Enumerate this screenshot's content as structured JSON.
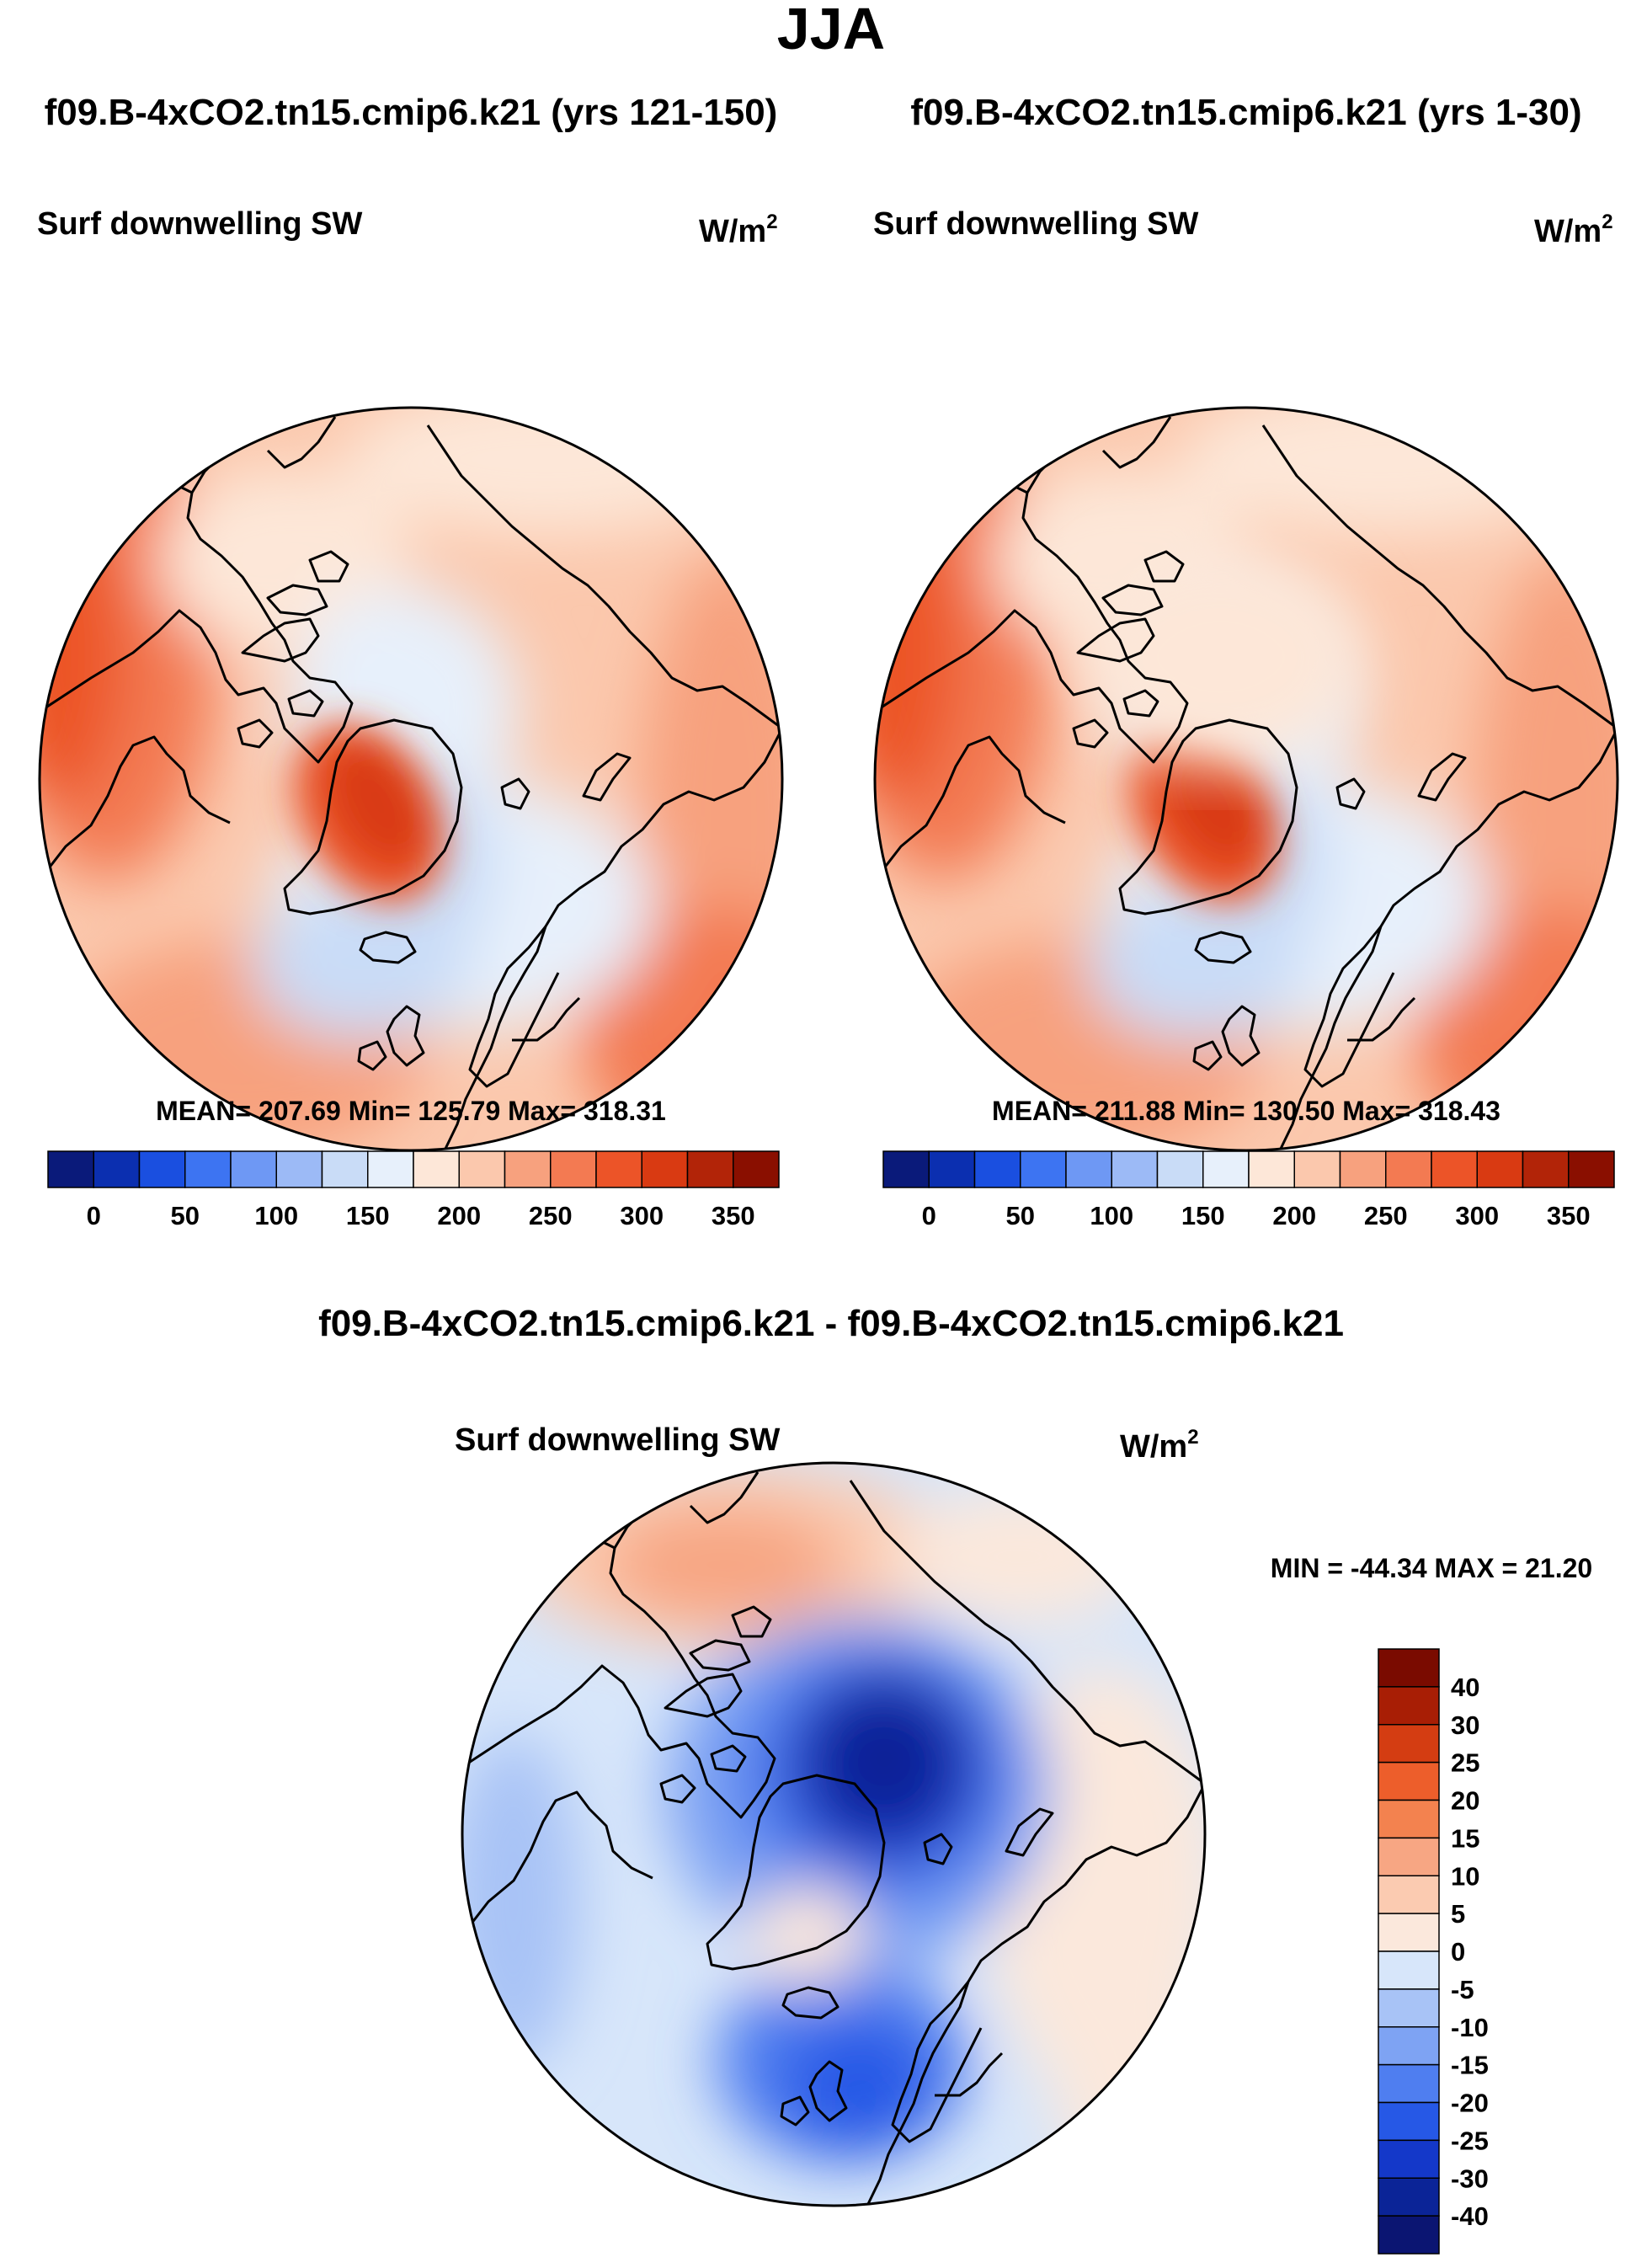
{
  "season": "JJA",
  "panels": [
    {
      "case_title": "f09.B-4xCO2.tn15.cmip6.k21 (yrs 121-150)",
      "variable": "Surf downwelling SW",
      "units_base": "W/m",
      "units_exp": "2",
      "stats": "MEAN= 207.69  Min= 125.79  Max= 318.31"
    },
    {
      "case_title": "f09.B-4xCO2.tn15.cmip6.k21 (yrs 1-30)",
      "variable": "Surf downwelling SW",
      "units_base": "W/m",
      "units_exp": "2",
      "stats": "MEAN= 211.88  Min= 130.50  Max= 318.43"
    }
  ],
  "diff_panel": {
    "case_title": "f09.B-4xCO2.tn15.cmip6.k21 - f09.B-4xCO2.tn15.cmip6.k21",
    "variable": "Surf downwelling SW",
    "units_base": "W/m",
    "units_exp": "2",
    "minmax": "MIN = -44.34 MAX =  21.20"
  },
  "colorbar_abs": {
    "colors": [
      "#0a1a7a",
      "#0b2fb0",
      "#1a4fe0",
      "#3d74f2",
      "#6e98f4",
      "#9cbaf6",
      "#c9dcf7",
      "#e7f0fb",
      "#fde7d8",
      "#fbc8ad",
      "#f7a17e",
      "#f37a52",
      "#ec5428",
      "#d93a12",
      "#b22408",
      "#8a0f00"
    ],
    "tick_labels": [
      "0",
      "50",
      "100",
      "150",
      "200",
      "250",
      "300",
      "350"
    ]
  },
  "colorbar_diff": {
    "colors": [
      "#0b1572",
      "#0b2497",
      "#1438c9",
      "#2658e6",
      "#4f7ef0",
      "#7ea3f3",
      "#a8c3f6",
      "#d7e6fa",
      "#fbe8dc",
      "#fbcbb1",
      "#f7a683",
      "#f3824f",
      "#ed5e2b",
      "#d43d12",
      "#a81e05",
      "#7a0b00"
    ],
    "tick_labels": [
      "-40",
      "-30",
      "-25",
      "-20",
      "-15",
      "-10",
      "-5",
      "0",
      "5",
      "10",
      "15",
      "20",
      "25",
      "30",
      "40"
    ]
  },
  "chart_data": {
    "type": "heatmap",
    "title": "JJA",
    "projection": "north polar stereographic",
    "panels": [
      {
        "name": "f09.B-4xCO2.tn15.cmip6.k21 (yrs 121-150)",
        "variable": "Surf downwelling SW",
        "units": "W/m2",
        "mean": 207.69,
        "min": 125.79,
        "max": 318.31,
        "contour_levels": [
          0,
          25,
          50,
          75,
          100,
          125,
          150,
          175,
          200,
          225,
          250,
          275,
          300,
          325,
          350
        ]
      },
      {
        "name": "f09.B-4xCO2.tn15.cmip6.k21 (yrs 1-30)",
        "variable": "Surf downwelling SW",
        "units": "W/m2",
        "mean": 211.88,
        "min": 130.5,
        "max": 318.43,
        "contour_levels": [
          0,
          25,
          50,
          75,
          100,
          125,
          150,
          175,
          200,
          225,
          250,
          275,
          300,
          325,
          350
        ]
      },
      {
        "name": "f09.B-4xCO2.tn15.cmip6.k21 - f09.B-4xCO2.tn15.cmip6.k21",
        "variable": "Surf downwelling SW",
        "units": "W/m2",
        "min": -44.34,
        "max": 21.2,
        "contour_levels": [
          -40,
          -30,
          -25,
          -20,
          -15,
          -10,
          -5,
          0,
          5,
          10,
          15,
          20,
          25,
          30,
          40
        ]
      }
    ]
  }
}
